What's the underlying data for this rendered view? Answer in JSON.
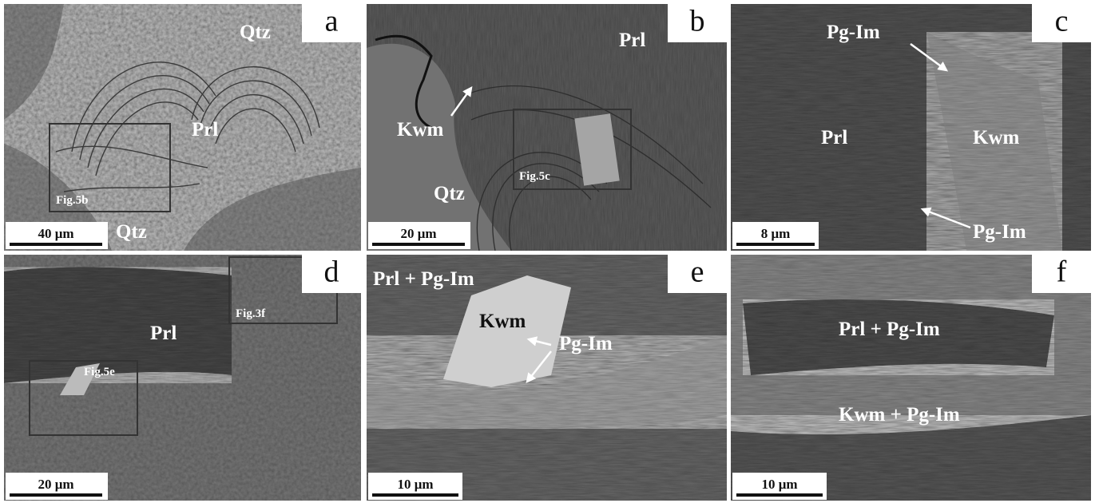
{
  "panels": [
    {
      "letter": "a",
      "labels": [
        "Qtz",
        "Prl",
        "Qtz"
      ],
      "figure_boxes": [
        "Fig.5b"
      ],
      "scale_bar": "40 μm"
    },
    {
      "letter": "b",
      "labels": [
        "Prl",
        "Kwm",
        "Qtz"
      ],
      "figure_boxes": [
        "Fig.5c"
      ],
      "scale_bar": "20 μm"
    },
    {
      "letter": "c",
      "labels": [
        "Pg-Im",
        "Prl",
        "Kwm",
        "Pg-Im"
      ],
      "scale_bar": "8 μm"
    },
    {
      "letter": "d",
      "labels": [
        "Prl"
      ],
      "figure_boxes": [
        "Fig.3f",
        "Fig.5e"
      ],
      "scale_bar": "20 μm"
    },
    {
      "letter": "e",
      "labels": [
        "Prl + Pg-Im",
        "Kwm",
        "Pg-Im"
      ],
      "scale_bar": "10 μm"
    },
    {
      "letter": "f",
      "labels": [
        "Prl + Pg-Im",
        "Kwm + Pg-Im"
      ],
      "scale_bar": "10 μm"
    }
  ]
}
